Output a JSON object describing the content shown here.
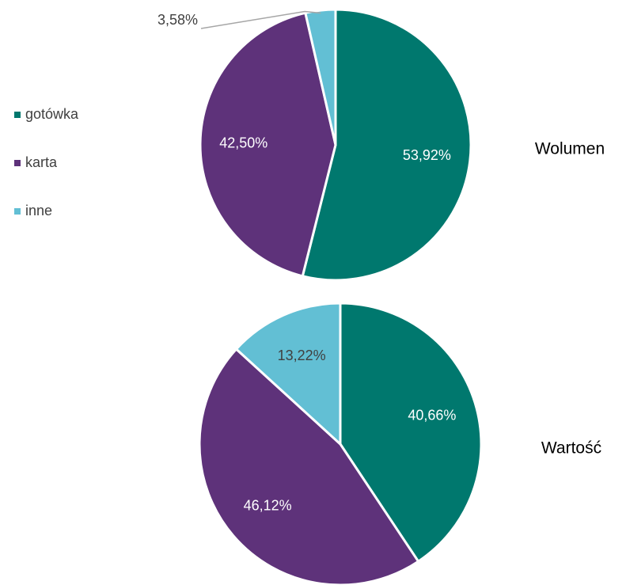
{
  "chart_data": {
    "type": "pie",
    "categories": [
      "gotówka",
      "karta",
      "inne"
    ],
    "colors": [
      "#00786e",
      "#5e327a",
      "#62bfd4"
    ],
    "series": [
      {
        "name": "Wolumen",
        "values": [
          53.92,
          42.5,
          3.58
        ],
        "value_labels": [
          "53,92%",
          "42,50%",
          "3,58%"
        ]
      },
      {
        "name": "Wartość",
        "values": [
          40.66,
          46.12,
          13.22
        ],
        "value_labels": [
          "40,66%",
          "46,12%",
          "13,22%"
        ]
      }
    ]
  }
}
